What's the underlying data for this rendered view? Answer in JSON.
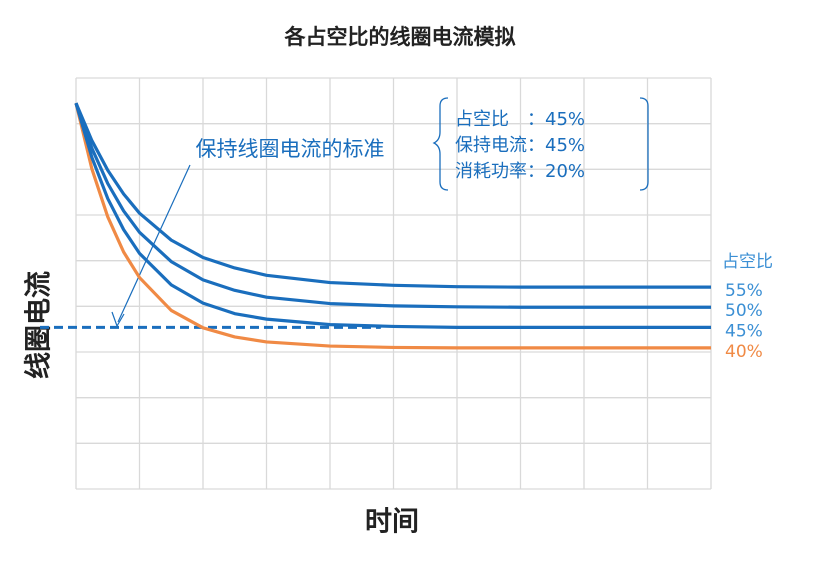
{
  "chart_data": {
    "type": "line",
    "title": "各占空比的线圈电流模拟",
    "xlabel": "时间",
    "ylabel": "线圈电流",
    "legend_title": "占空比",
    "x": [
      0,
      0.25,
      0.5,
      0.75,
      1,
      1.5,
      2,
      2.5,
      3,
      4,
      5,
      6,
      7,
      8,
      9,
      10
    ],
    "xlim": [
      0,
      10
    ],
    "ylim": [
      0,
      9
    ],
    "grid": true,
    "series": [
      {
        "name": "40%",
        "color": "#f08a45",
        "values": [
          8.45,
          7.01,
          5.96,
          5.19,
          4.63,
          3.91,
          3.53,
          3.33,
          3.22,
          3.13,
          3.1,
          3.09,
          3.09,
          3.09,
          3.09,
          3.09
        ]
      },
      {
        "name": "45%",
        "color": "#1a6ebd",
        "values": [
          8.45,
          7.26,
          6.36,
          5.68,
          5.16,
          4.47,
          4.07,
          3.84,
          3.72,
          3.6,
          3.56,
          3.54,
          3.54,
          3.54,
          3.54,
          3.54
        ]
      },
      {
        "name": "50%",
        "color": "#1a6ebd",
        "values": [
          8.45,
          7.46,
          6.69,
          6.09,
          5.62,
          4.98,
          4.58,
          4.35,
          4.2,
          4.06,
          4.01,
          3.99,
          3.98,
          3.98,
          3.98,
          3.98
        ]
      },
      {
        "name": "55%",
        "color": "#1a6ebd",
        "values": [
          8.45,
          7.63,
          6.98,
          6.46,
          6.04,
          5.45,
          5.07,
          4.84,
          4.68,
          4.52,
          4.46,
          4.43,
          4.42,
          4.42,
          4.42,
          4.42
        ]
      }
    ],
    "reference": {
      "label": "保持线圈电流的标准",
      "value": 3.54,
      "x_end": 4.8,
      "color": "#1a6ebd"
    },
    "info_box": [
      "占空比　：45%",
      "保持电流：45%",
      "消耗功率：20%"
    ]
  }
}
